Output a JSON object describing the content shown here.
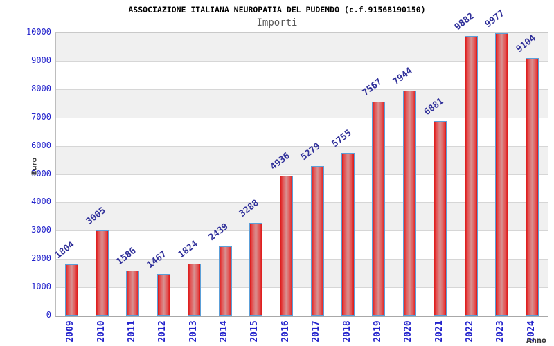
{
  "chart_data": {
    "type": "bar",
    "title": "ASSOCIAZIONE ITALIANA NEUROPATIA DEL PUDENDO (c.f.91568190150)",
    "subtitle": "Importi",
    "xlabel": "Anno",
    "ylabel": "Euro",
    "categories": [
      "2009",
      "2010",
      "2011",
      "2012",
      "2013",
      "2014",
      "2015",
      "2016",
      "2017",
      "2018",
      "2019",
      "2020",
      "2021",
      "2022",
      "2023",
      "2024"
    ],
    "values": [
      1804,
      3005,
      1586,
      1467,
      1824,
      2439,
      3288,
      4936,
      5279,
      5755,
      7567,
      7944,
      6881,
      9882,
      9977,
      9104
    ],
    "ylim": [
      0,
      10000
    ],
    "ytick_step": 1000,
    "ytick_labels": [
      "0",
      "1000",
      "2000",
      "3000",
      "4000",
      "5000",
      "6000",
      "7000",
      "8000",
      "9000",
      "10000"
    ],
    "grid": "horizontal-with-alternating-bands",
    "legend_position": "none",
    "value_labels_rotated": true,
    "category_labels_rotated": true,
    "colors": {
      "title": "#000000",
      "subtitle": "#575757",
      "tick_label": "#2323cc",
      "value_label": "#30309a",
      "axis_title": "#3a3a3a",
      "bar_edge": "#dd1818",
      "bar_center": "#d89292",
      "bar_border": "#5b9fd8",
      "band": "#f0f0f0",
      "gridline": "#d6d6d6"
    }
  }
}
